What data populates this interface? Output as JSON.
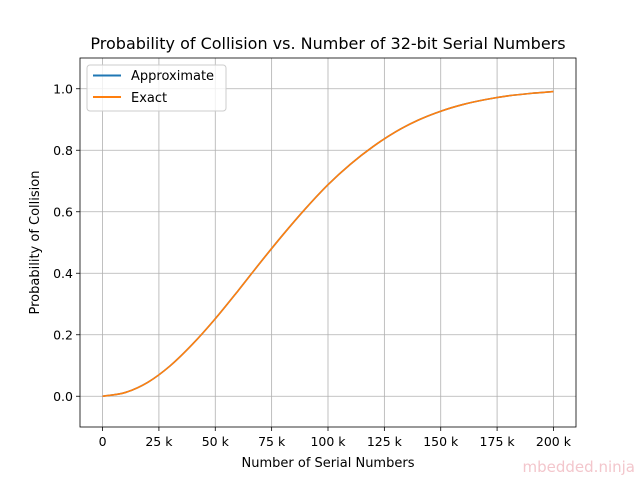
{
  "chart_data": {
    "type": "line",
    "title": "Probability of Collision vs. Number of 32-bit Serial Numbers",
    "xlabel": "Number of Serial Numbers",
    "ylabel": "Probability of Collision",
    "xlim": [
      -10000,
      210000
    ],
    "ylim": [
      -0.1,
      1.1
    ],
    "x_ticks": [
      0,
      25000,
      50000,
      75000,
      100000,
      125000,
      150000,
      175000,
      200000
    ],
    "x_tick_labels": [
      "0",
      "25 k",
      "50 k",
      "75 k",
      "100 k",
      "125 k",
      "150 k",
      "175 k",
      "200 k"
    ],
    "y_ticks": [
      0.0,
      0.2,
      0.4,
      0.6,
      0.8,
      1.0
    ],
    "y_tick_labels": [
      "0.0",
      "0.2",
      "0.4",
      "0.6",
      "0.8",
      "1.0"
    ],
    "grid": true,
    "legend_position": "top-left",
    "x": [
      0,
      10000,
      20000,
      30000,
      40000,
      50000,
      60000,
      70000,
      80000,
      90000,
      100000,
      110000,
      120000,
      130000,
      140000,
      150000,
      160000,
      170000,
      180000,
      190000,
      200000
    ],
    "series": [
      {
        "name": "Approximate",
        "color": "#1f77b4",
        "values": [
          0.0,
          0.012,
          0.045,
          0.099,
          0.17,
          0.252,
          0.342,
          0.435,
          0.525,
          0.61,
          0.688,
          0.755,
          0.812,
          0.86,
          0.898,
          0.927,
          0.949,
          0.965,
          0.977,
          0.985,
          0.991
        ]
      },
      {
        "name": "Exact",
        "color": "#ff7f0e",
        "values": [
          0.0,
          0.012,
          0.045,
          0.099,
          0.17,
          0.252,
          0.342,
          0.435,
          0.525,
          0.61,
          0.688,
          0.755,
          0.812,
          0.86,
          0.898,
          0.927,
          0.949,
          0.965,
          0.977,
          0.985,
          0.991
        ]
      }
    ]
  },
  "watermark": {
    "text": "mbedded.ninja"
  }
}
